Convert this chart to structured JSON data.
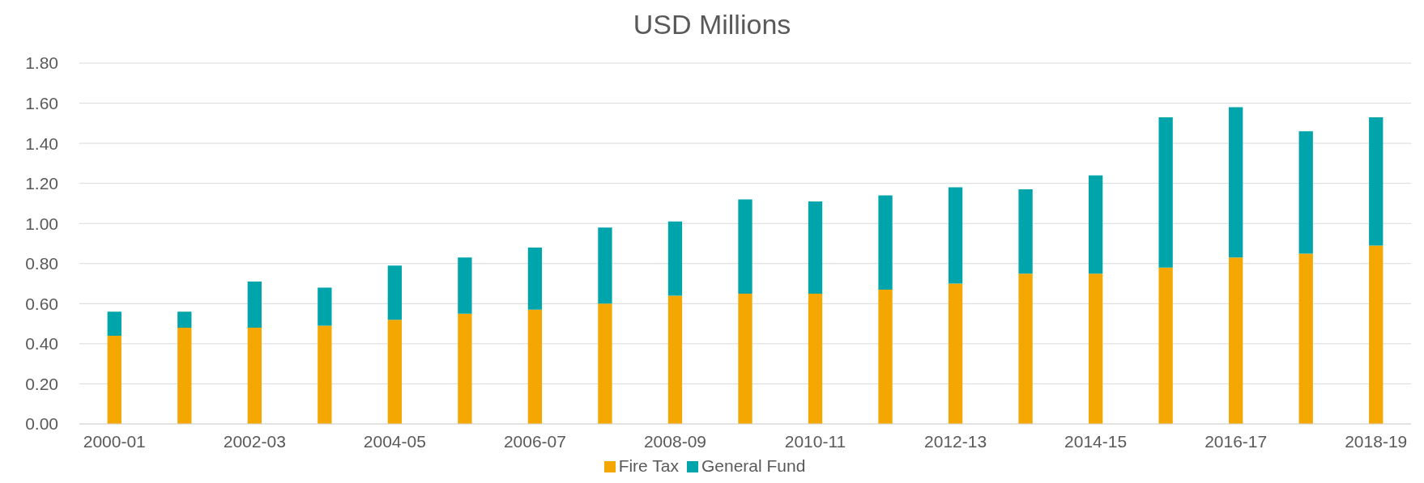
{
  "chart_data": {
    "type": "bar",
    "title": "USD Millions",
    "stacked": true,
    "categories": [
      "2000-01",
      null,
      "2002-03",
      null,
      "2004-05",
      null,
      "2006-07",
      null,
      "2008-09",
      null,
      "2010-11",
      null,
      "2012-13",
      null,
      "2014-15",
      null,
      "2016-17",
      null,
      "2018-19"
    ],
    "series": [
      {
        "name": "Fire Tax",
        "color": "#f4a700",
        "values": [
          0.44,
          0.48,
          0.48,
          0.49,
          0.52,
          0.55,
          0.57,
          0.6,
          0.64,
          0.65,
          0.65,
          0.67,
          0.7,
          0.75,
          0.75,
          0.78,
          0.83,
          0.85,
          0.89
        ]
      },
      {
        "name": "General Fund",
        "color": "#00a5ac",
        "values": [
          0.12,
          0.08,
          0.23,
          0.19,
          0.27,
          0.28,
          0.31,
          0.38,
          0.37,
          0.47,
          0.46,
          0.47,
          0.48,
          0.42,
          0.49,
          0.75,
          0.75,
          0.61,
          0.64
        ]
      }
    ],
    "ylim": [
      0,
      1.8
    ],
    "yticks": [
      {
        "value": 0,
        "label": "0.00"
      },
      {
        "value": 0.2,
        "label": "0.20"
      },
      {
        "value": 0.4,
        "label": "0.40"
      },
      {
        "value": 0.6,
        "label": "0.60"
      },
      {
        "value": 0.8,
        "label": "0.80"
      },
      {
        "value": 1,
        "label": "1.00"
      },
      {
        "value": 1.2,
        "label": "1.20"
      },
      {
        "value": 1.4,
        "label": "1.40"
      },
      {
        "value": 1.6,
        "label": "1.60"
      },
      {
        "value": 1.8,
        "label": "1.80"
      }
    ],
    "grid": "y",
    "legend": "bottom"
  }
}
